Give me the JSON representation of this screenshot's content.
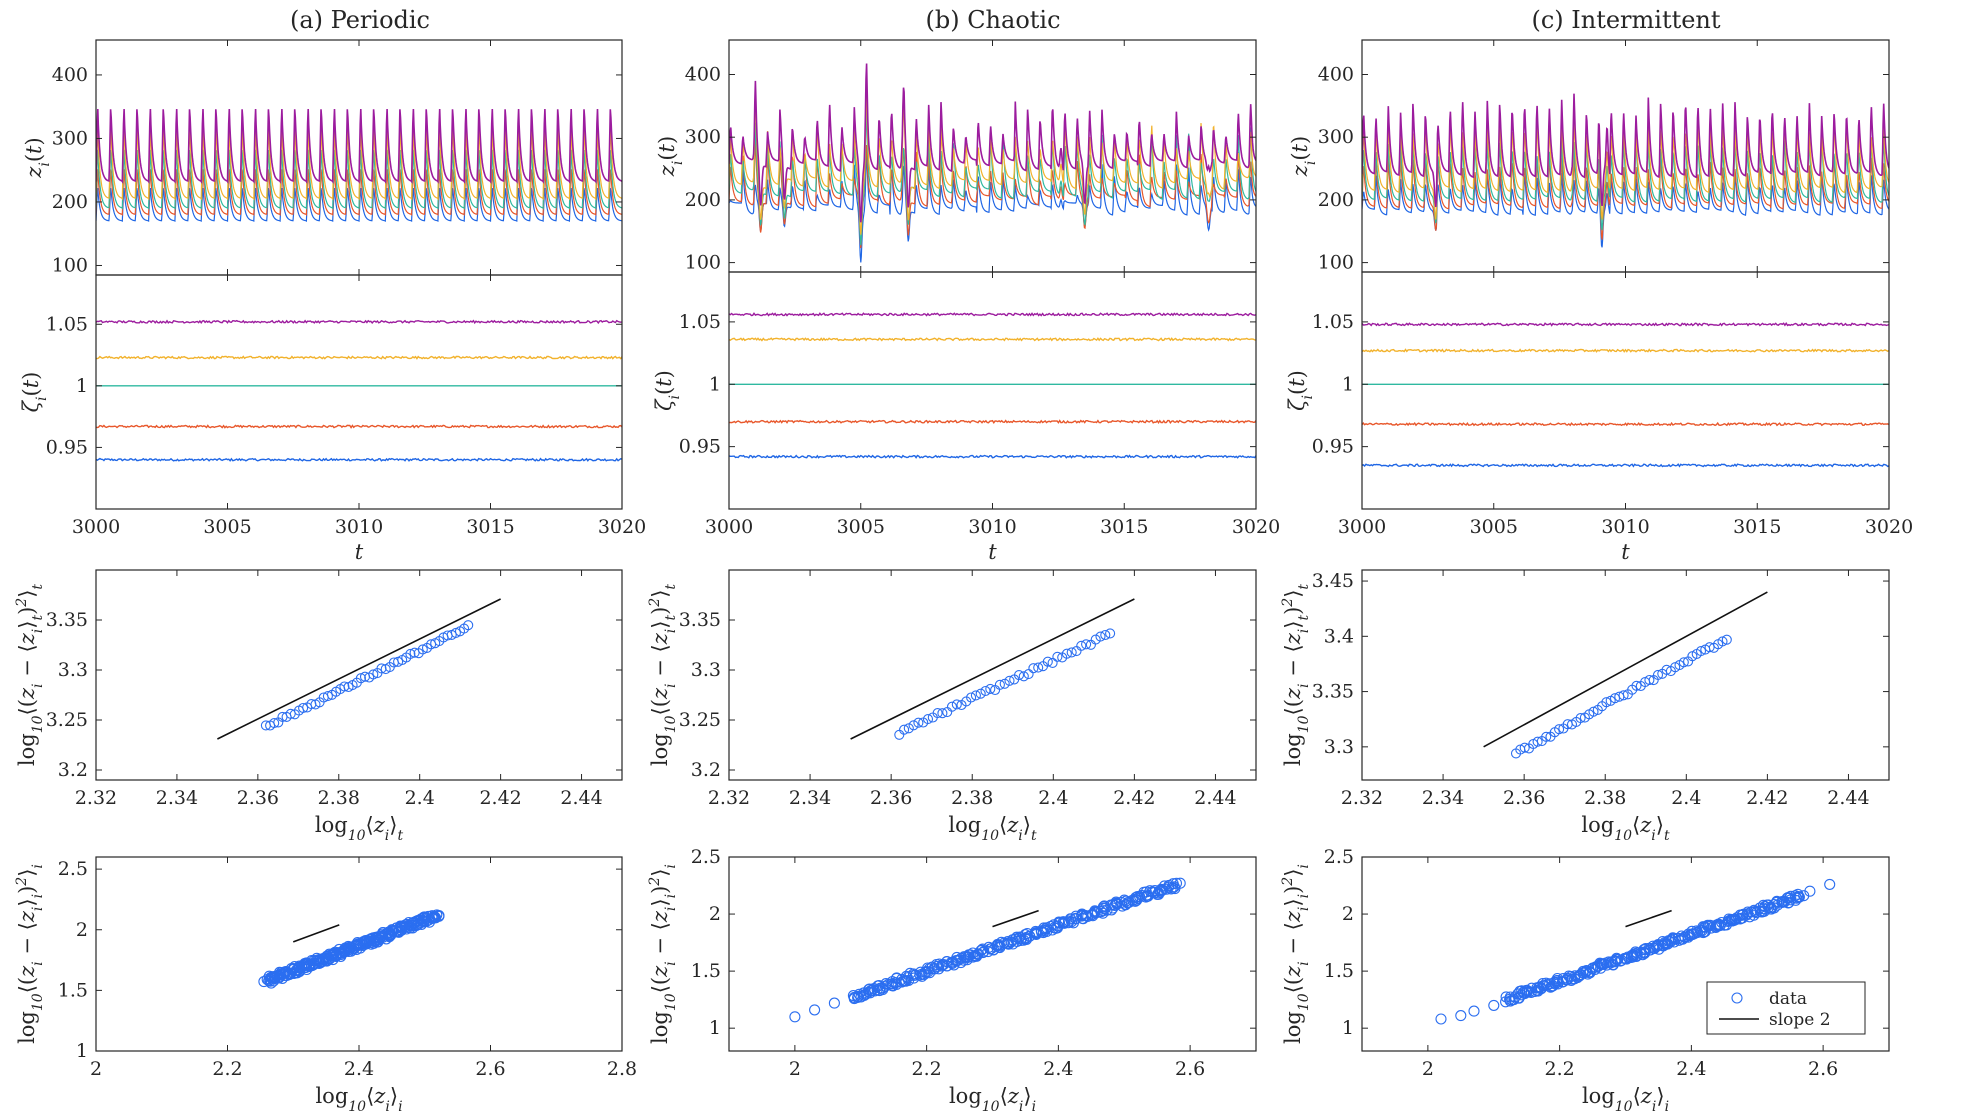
{
  "figure": {
    "columns": [
      {
        "title": "(a) Periodic"
      },
      {
        "title": "(b) Chaotic"
      },
      {
        "title": "(c) Intermittent"
      }
    ],
    "series_colors": [
      "#1f66e5",
      "#e8572b",
      "#2fb9a0",
      "#f2b22c",
      "#9c1c9e"
    ]
  },
  "chart_data": [
    {
      "type": "line",
      "panel": "a-z",
      "column": "(a) Periodic",
      "ylabel": "z_i(t)",
      "xlim": [
        3000,
        3020
      ],
      "ylim": [
        85,
        455
      ],
      "yticks": [
        100,
        200,
        300,
        400
      ],
      "x_ticks_shown": false,
      "period": 0.5,
      "base": [
        170,
        180,
        190,
        205,
        232
      ],
      "peak": 355,
      "noise": 0,
      "grid": false
    },
    {
      "type": "line",
      "panel": "b-z",
      "column": "(b) Chaotic",
      "ylabel": "z_i(t)",
      "xlim": [
        3000,
        3020
      ],
      "ylim": [
        85,
        455
      ],
      "yticks": [
        100,
        200,
        300,
        400
      ],
      "x_ticks_shown": false,
      "period": 0.47,
      "base": [
        185,
        198,
        210,
        225,
        255
      ],
      "peak": 330,
      "noise": 1,
      "spikes": [
        [
          3005.2,
          420
        ],
        [
          3006.6,
          395
        ],
        [
          3018.2,
          405
        ],
        [
          3001.0,
          385
        ],
        [
          3012.6,
          365
        ],
        [
          3019.8,
          360
        ]
      ],
      "dips": [
        [
          3005.0,
          105
        ],
        [
          3006.8,
          130
        ],
        [
          3018.2,
          120
        ],
        [
          3001.2,
          140
        ],
        [
          3002.1,
          150
        ],
        [
          3013.5,
          150
        ]
      ],
      "grid": false
    },
    {
      "type": "line",
      "panel": "c-z",
      "column": "(c) Intermittent",
      "ylabel": "z_i(t)",
      "xlim": [
        3000,
        3020
      ],
      "ylim": [
        85,
        455
      ],
      "yticks": [
        100,
        200,
        300,
        400
      ],
      "x_ticks_shown": false,
      "period": 0.47,
      "base": [
        180,
        190,
        200,
        215,
        240
      ],
      "peak": 350,
      "noise": 0.5,
      "spikes": [
        [
          3009.3,
          420
        ],
        [
          3019.8,
          360
        ],
        [
          3008.0,
          370
        ]
      ],
      "dips": [
        [
          3009.1,
          110
        ],
        [
          3002.8,
          150
        ]
      ],
      "grid": false
    },
    {
      "type": "line",
      "panel": "a-zeta",
      "column": "(a) Periodic",
      "ylabel": "ζ_i(t)",
      "xlabel": "t",
      "xlim": [
        3000,
        3020
      ],
      "ylim": [
        0.9,
        1.09
      ],
      "xticks": [
        3000,
        3005,
        3010,
        3015,
        3020
      ],
      "yticks": [
        0.95,
        1,
        1.05
      ],
      "ytick_labels": [
        "0.95",
        "1",
        "1.05"
      ],
      "levels": [
        0.94,
        0.967,
        1.0,
        1.023,
        1.052
      ],
      "grid": false
    },
    {
      "type": "line",
      "panel": "b-zeta",
      "column": "(b) Chaotic",
      "ylabel": "ζ_i(t)",
      "xlabel": "t",
      "xlim": [
        3000,
        3020
      ],
      "ylim": [
        0.9,
        1.09
      ],
      "xticks": [
        3000,
        3005,
        3010,
        3015,
        3020
      ],
      "yticks": [
        0.95,
        1,
        1.05
      ],
      "ytick_labels": [
        "0.95",
        "1",
        "1.05"
      ],
      "levels": [
        0.942,
        0.97,
        1.0,
        1.036,
        1.056
      ],
      "grid": false
    },
    {
      "type": "line",
      "panel": "c-zeta",
      "column": "(c) Intermittent",
      "ylabel": "ζ_i(t)",
      "xlabel": "t",
      "xlim": [
        3000,
        3020
      ],
      "ylim": [
        0.9,
        1.09
      ],
      "xticks": [
        3000,
        3005,
        3010,
        3015,
        3020
      ],
      "yticks": [
        0.95,
        1,
        1.05
      ],
      "ytick_labels": [
        "0.95",
        "1",
        "1.05"
      ],
      "levels": [
        0.935,
        0.968,
        1.0,
        1.027,
        1.048
      ],
      "grid": false
    },
    {
      "type": "scatter",
      "panel": "a-temporal",
      "column": "(a) Periodic",
      "xlabel": "log10⟨z_i⟩_t",
      "ylabel": "log10⟨(z_i − ⟨z_i⟩_t)²⟩_t",
      "xlim": [
        2.32,
        2.45
      ],
      "ylim": [
        3.19,
        3.4
      ],
      "xticks": [
        2.32,
        2.34,
        2.36,
        2.38,
        2.4,
        2.42,
        2.44
      ],
      "xtick_labels": [
        "2.32",
        "2.34",
        "2.36",
        "2.38",
        "2.4",
        "2.42",
        "2.44"
      ],
      "yticks": [
        3.2,
        3.25,
        3.3,
        3.35
      ],
      "ytick_labels": [
        "3.2",
        "3.25",
        "3.3",
        "3.35"
      ],
      "points": {
        "x_start": 2.362,
        "x_end": 2.412,
        "y_start": 3.243,
        "y_end": 3.343,
        "count": 50
      },
      "slope_line": {
        "x": [
          2.35,
          2.42
        ],
        "y": [
          3.231,
          3.371
        ]
      },
      "grid": false
    },
    {
      "type": "scatter",
      "panel": "b-temporal",
      "column": "(b) Chaotic",
      "xlabel": "log10⟨z_i⟩_t",
      "ylabel": "log10⟨(z_i − ⟨z_i⟩_t)²⟩_t",
      "xlim": [
        2.32,
        2.45
      ],
      "ylim": [
        3.19,
        3.4
      ],
      "xticks": [
        2.32,
        2.34,
        2.36,
        2.38,
        2.4,
        2.42,
        2.44
      ],
      "xtick_labels": [
        "2.32",
        "2.34",
        "2.36",
        "2.38",
        "2.4",
        "2.42",
        "2.44"
      ],
      "yticks": [
        3.2,
        3.25,
        3.3,
        3.35
      ],
      "ytick_labels": [
        "3.2",
        "3.25",
        "3.3",
        "3.35"
      ],
      "points": {
        "x_start": 2.362,
        "x_end": 2.414,
        "y_start": 3.237,
        "y_end": 3.336,
        "count": 45
      },
      "slope_line": {
        "x": [
          2.35,
          2.42
        ],
        "y": [
          3.231,
          3.371
        ]
      },
      "grid": false
    },
    {
      "type": "scatter",
      "panel": "c-temporal",
      "column": "(c) Intermittent",
      "xlabel": "log10⟨z_i⟩_t",
      "ylabel": "log10⟨(z_i − ⟨z_i⟩_t)²⟩_t",
      "xlim": [
        2.32,
        2.45
      ],
      "ylim": [
        3.27,
        3.46
      ],
      "xticks": [
        2.32,
        2.34,
        2.36,
        2.38,
        2.4,
        2.42,
        2.44
      ],
      "xtick_labels": [
        "2.32",
        "2.34",
        "2.36",
        "2.38",
        "2.4",
        "2.42",
        "2.44"
      ],
      "yticks": [
        3.3,
        3.35,
        3.4,
        3.45
      ],
      "ytick_labels": [
        "3.3",
        "3.35",
        "3.4",
        "3.45"
      ],
      "points": {
        "x_start": 2.358,
        "x_end": 2.41,
        "y_start": 3.294,
        "y_end": 3.398,
        "count": 50
      },
      "slope_line": {
        "x": [
          2.35,
          2.42
        ],
        "y": [
          3.3,
          3.44
        ]
      },
      "grid": false
    },
    {
      "type": "scatter",
      "panel": "a-spatial",
      "column": "(a) Periodic",
      "xlabel": "log10⟨z_i⟩_i",
      "ylabel": "log10⟨(z_i − ⟨z_i⟩_i)²⟩_i",
      "xlim": [
        2.0,
        2.8
      ],
      "ylim": [
        1.0,
        2.6
      ],
      "xticks": [
        2,
        2.2,
        2.4,
        2.6,
        2.8
      ],
      "xtick_labels": [
        "2",
        "2.2",
        "2.4",
        "2.6",
        "2.8"
      ],
      "yticks": [
        1,
        1.5,
        2,
        2.5
      ],
      "ytick_labels": [
        "1",
        "1.5",
        "2",
        "2.5"
      ],
      "points": {
        "x_start": 2.26,
        "x_end": 2.52,
        "y_start": 1.58,
        "y_end": 2.12,
        "count": 260
      },
      "slope_line": {
        "x": [
          2.3,
          2.37
        ],
        "y": [
          1.9,
          2.04
        ]
      },
      "grid": false
    },
    {
      "type": "scatter",
      "panel": "b-spatial",
      "column": "(b) Chaotic",
      "xlabel": "log10⟨z_i⟩_i",
      "ylabel": "log10⟨(z_i − ⟨z_i⟩_i)²⟩_i",
      "xlim": [
        1.9,
        2.7
      ],
      "ylim": [
        0.8,
        2.5
      ],
      "xticks": [
        2,
        2.2,
        2.4,
        2.6
      ],
      "xtick_labels": [
        "2",
        "2.2",
        "2.4",
        "2.6"
      ],
      "yticks": [
        1,
        1.5,
        2,
        2.5
      ],
      "ytick_labels": [
        "1",
        "1.5",
        "2",
        "2.5"
      ],
      "points": {
        "x_start": 2.09,
        "x_end": 2.58,
        "y_start": 1.28,
        "y_end": 2.26,
        "count": 260
      },
      "extra_points": [
        [
          2.0,
          1.1
        ],
        [
          2.03,
          1.16
        ],
        [
          2.06,
          1.22
        ],
        [
          2.09,
          1.27
        ],
        [
          2.585,
          2.27
        ]
      ],
      "slope_line": {
        "x": [
          2.3,
          2.37
        ],
        "y": [
          1.89,
          2.03
        ]
      },
      "grid": false
    },
    {
      "type": "scatter",
      "panel": "c-spatial",
      "column": "(c) Intermittent",
      "xlabel": "log10⟨z_i⟩_i",
      "ylabel": "log10⟨(z_i − ⟨z_i⟩_i)²⟩_i",
      "xlim": [
        1.9,
        2.7
      ],
      "ylim": [
        0.8,
        2.5
      ],
      "xticks": [
        2,
        2.2,
        2.4,
        2.6
      ],
      "xtick_labels": [
        "2",
        "2.2",
        "2.4",
        "2.6"
      ],
      "yticks": [
        1,
        1.5,
        2,
        2.5
      ],
      "ytick_labels": [
        "1",
        "1.5",
        "2",
        "2.5"
      ],
      "points": {
        "x_start": 2.12,
        "x_end": 2.57,
        "y_start": 1.25,
        "y_end": 2.17,
        "count": 260
      },
      "extra_points": [
        [
          2.02,
          1.08
        ],
        [
          2.05,
          1.11
        ],
        [
          2.07,
          1.15
        ],
        [
          2.1,
          1.2
        ],
        [
          2.58,
          2.2
        ],
        [
          2.61,
          2.26
        ]
      ],
      "slope_line": {
        "x": [
          2.3,
          2.37
        ],
        "y": [
          1.89,
          2.03
        ]
      },
      "legend": {
        "placement": "bottom-right",
        "entries": [
          "data",
          "slope 2"
        ]
      },
      "grid": false
    }
  ]
}
